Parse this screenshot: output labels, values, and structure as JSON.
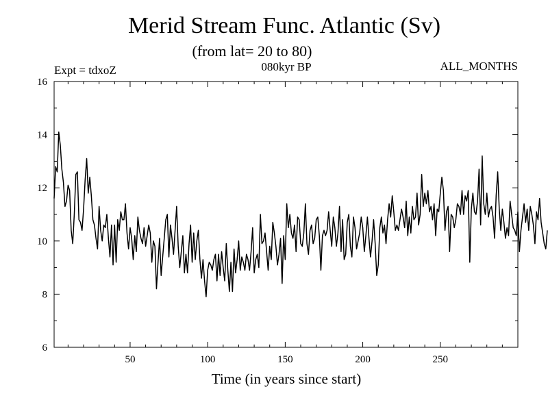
{
  "chart_data": {
    "type": "line",
    "title": "Merid Stream Func. Atlantic (Sv)",
    "subtitle": "(from lat= 20 to 80)",
    "annotations": {
      "left": "Expt = tdxoZ",
      "center": "080kyr BP",
      "right": "ALL_MONTHS"
    },
    "xlabel": "Time (in years since start)",
    "ylabel": "",
    "xlim": [
      1,
      300
    ],
    "ylim": [
      6,
      16
    ],
    "x_ticks": [
      50,
      100,
      150,
      200,
      250
    ],
    "y_ticks": [
      6,
      8,
      10,
      12,
      14,
      16
    ],
    "line_color": "#000000",
    "series": [
      {
        "x_start": 1,
        "x_step": 1,
        "values": [
          11.6,
          12.8,
          12.6,
          14.1,
          13.6,
          12.7,
          12.2,
          11.3,
          11.5,
          12.1,
          11.9,
          10.4,
          9.9,
          11.0,
          12.5,
          12.6,
          10.8,
          10.7,
          10.4,
          11.2,
          12.3,
          13.1,
          11.8,
          12.4,
          11.7,
          10.8,
          10.6,
          10.1,
          9.7,
          11.3,
          10.4,
          10.0,
          10.6,
          10.5,
          11.0,
          10.1,
          9.4,
          10.6,
          9.1,
          10.6,
          9.2,
          10.8,
          10.4,
          11.1,
          10.8,
          10.8,
          11.4,
          10.3,
          9.7,
          10.5,
          10.1,
          9.3,
          10.2,
          9.6,
          10.9,
          10.4,
          10.1,
          9.9,
          10.5,
          9.8,
          10.2,
          10.6,
          10.3,
          9.2,
          10.0,
          9.8,
          8.2,
          9.2,
          10.1,
          8.7,
          9.4,
          10.1,
          10.8,
          11.0,
          9.4,
          10.6,
          10.1,
          9.5,
          10.4,
          11.3,
          9.8,
          9.0,
          9.6,
          10.2,
          8.8,
          9.5,
          8.8,
          9.9,
          10.6,
          9.2,
          10.3,
          9.3,
          10.0,
          10.4,
          9.3,
          8.6,
          9.3,
          8.5,
          7.9,
          8.9,
          9.2,
          9.1,
          8.9,
          9.3,
          9.5,
          8.5,
          9.5,
          8.7,
          9.6,
          9.0,
          8.5,
          9.9,
          8.9,
          8.1,
          9.2,
          8.1,
          9.7,
          8.8,
          9.3,
          10.0,
          8.9,
          9.4,
          9.2,
          8.9,
          9.5,
          9.3,
          8.9,
          9.6,
          10.5,
          8.8,
          9.3,
          9.5,
          9.0,
          11.0,
          9.9,
          10.0,
          10.3,
          9.6,
          8.9,
          9.8,
          9.3,
          10.7,
          10.3,
          9.8,
          9.1,
          9.5,
          10.1,
          8.4,
          10.2,
          9.3,
          11.4,
          10.5,
          11.0,
          10.3,
          10.1,
          10.6,
          9.6,
          10.9,
          10.8,
          9.9,
          9.8,
          10.3,
          11.4,
          9.9,
          9.5,
          10.4,
          10.6,
          9.9,
          10.1,
          10.8,
          10.9,
          10.2,
          8.9,
          10.2,
          10.4,
          10.2,
          10.4,
          11.1,
          10.4,
          9.8,
          10.9,
          10.5,
          9.8,
          10.3,
          11.3,
          9.6,
          10.8,
          9.3,
          9.5,
          10.7,
          11.0,
          9.8,
          9.4,
          10.9,
          10.5,
          9.7,
          10.0,
          10.3,
          10.9,
          10.5,
          9.6,
          10.2,
          10.9,
          10.1,
          9.4,
          10.0,
          10.8,
          9.9,
          8.7,
          9.1,
          10.5,
          10.9,
          10.3,
          10.6,
          9.9,
          10.8,
          11.4,
          10.9,
          11.7,
          11.1,
          10.4,
          10.6,
          10.4,
          10.8,
          11.2,
          10.9,
          10.5,
          11.5,
          10.2,
          10.9,
          10.3,
          11.3,
          10.8,
          10.9,
          11.8,
          10.6,
          11.0,
          12.5,
          11.3,
          11.8,
          11.4,
          11.9,
          11.1,
          11.3,
          10.8,
          11.4,
          10.2,
          11.2,
          11.1,
          11.8,
          12.4,
          11.9,
          10.4,
          11.1,
          11.3,
          9.6,
          11.0,
          10.9,
          10.5,
          10.8,
          11.4,
          11.3,
          11.0,
          11.9,
          11.0,
          11.7,
          11.5,
          11.9,
          9.2,
          11.2,
          11.8,
          11.1,
          11.0,
          11.5,
          12.7,
          10.6,
          13.2,
          11.4,
          11.0,
          11.8,
          10.9,
          11.2,
          11.3,
          10.9,
          10.1,
          11.7,
          12.6,
          11.2,
          10.4,
          11.2,
          10.7,
          10.1,
          10.5,
          10.2,
          11.5,
          11.0,
          10.5,
          10.4,
          10.2,
          11.1,
          9.6,
          10.4,
          10.9,
          11.4,
          10.7,
          11.2,
          10.4,
          11.3,
          11.0,
          10.6,
          9.9,
          11.1,
          10.8,
          11.6,
          10.7,
          10.3,
          9.9,
          9.7,
          10.4
        ]
      }
    ]
  }
}
